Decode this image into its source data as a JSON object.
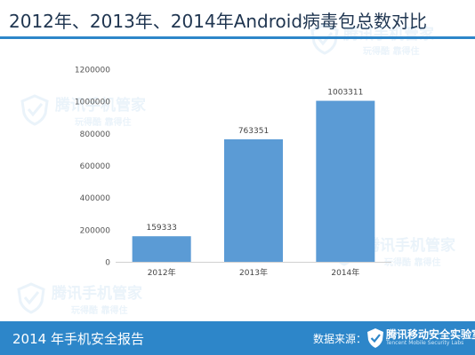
{
  "header": {
    "title": "2012年、2013年、2014年Android病毒包总数对比"
  },
  "watermark": {
    "brand": "腾讯手机管家",
    "slogan": "玩得酷 靠得住"
  },
  "footer": {
    "report_title": "2014 年手机安全报告",
    "source_label": "数据来源：",
    "source_name": "腾讯移动安全实验室",
    "source_name_en": "Tencent Mobile Security Labs"
  },
  "colors": {
    "accent": "#2d86c9",
    "bar": "#5b9bd5",
    "title": "#1f3550"
  },
  "chart_data": {
    "type": "bar",
    "title": "",
    "xlabel": "",
    "ylabel": "",
    "categories": [
      "2012年",
      "2013年",
      "2014年"
    ],
    "values": [
      159333,
      763351,
      1003311
    ],
    "data_labels": [
      "159333",
      "763351",
      "1003311"
    ],
    "ylim": [
      0,
      1200000
    ],
    "yticks": [
      0,
      200000,
      400000,
      600000,
      800000,
      1000000,
      1200000
    ],
    "ytick_labels": [
      "0",
      "200000",
      "400000",
      "600000",
      "800000",
      "1000000",
      "1200000"
    ],
    "grid": false,
    "legend": false
  }
}
